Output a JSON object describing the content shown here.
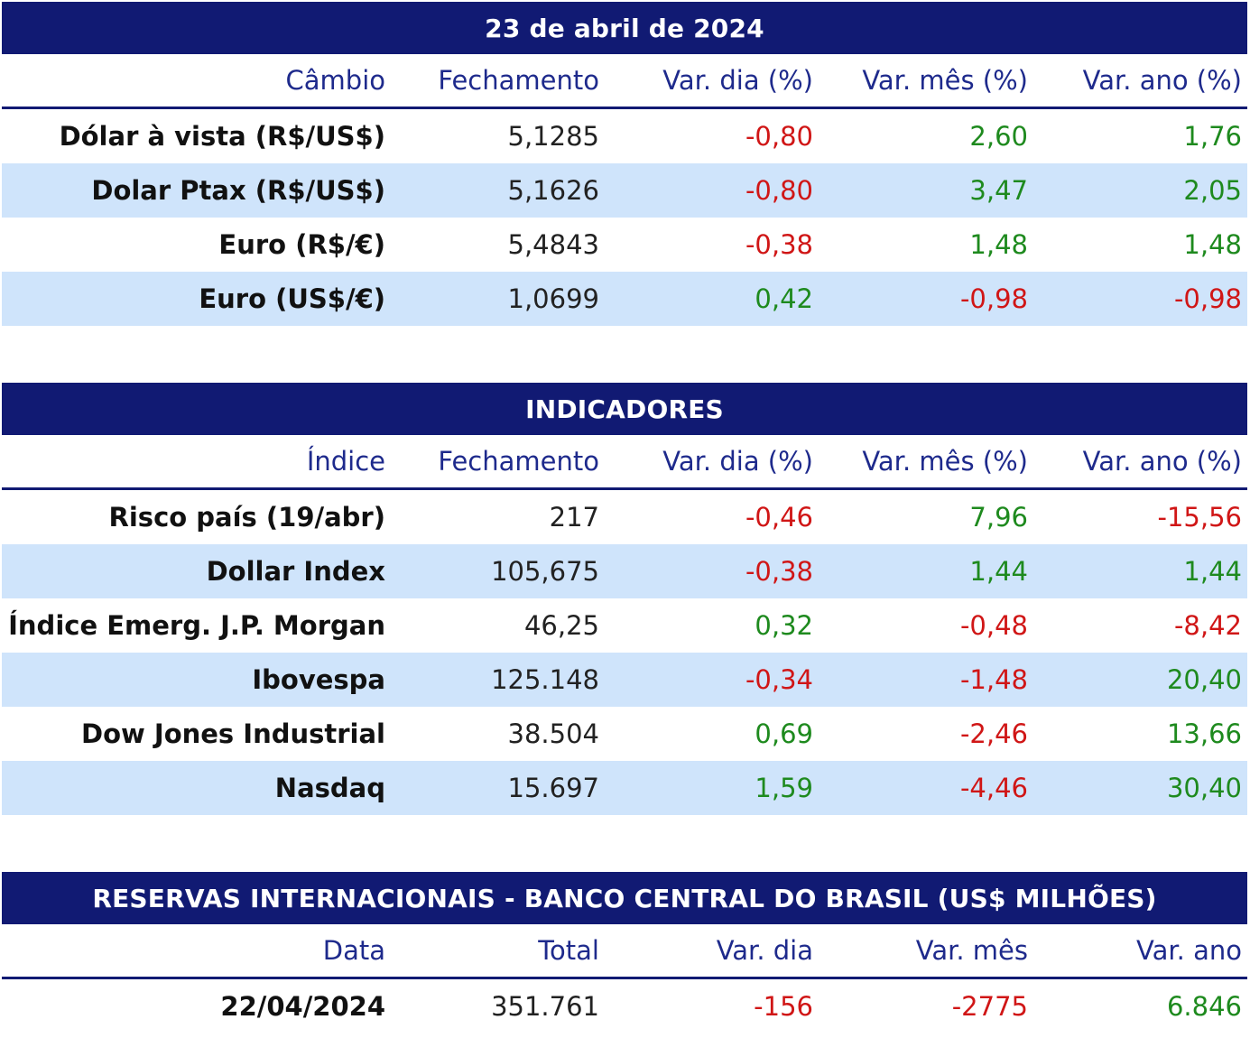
{
  "cambio": {
    "title": "23 de abril de 2024",
    "headers": [
      "Câmbio",
      "Fechamento",
      "Var. dia (%)",
      "Var. mês (%)",
      "Var. ano (%)"
    ],
    "rows": [
      {
        "name": "Dólar à vista (R$/US$)",
        "close": "5,1285",
        "day": "-0,80",
        "month": "2,60",
        "year": "1,76"
      },
      {
        "name": "Dolar Ptax (R$/US$)",
        "close": "5,1626",
        "day": "-0,80",
        "month": "3,47",
        "year": "2,05"
      },
      {
        "name": "Euro (R$/€)",
        "close": "5,4843",
        "day": "-0,38",
        "month": "1,48",
        "year": "1,48"
      },
      {
        "name": "Euro (US$/€)",
        "close": "1,0699",
        "day": "0,42",
        "month": "-0,98",
        "year": "-0,98"
      }
    ]
  },
  "indicadores": {
    "title": "INDICADORES",
    "headers": [
      "Índice",
      "Fechamento",
      "Var. dia (%)",
      "Var. mês (%)",
      "Var. ano (%)"
    ],
    "rows": [
      {
        "name": "Risco país (19/abr)",
        "close": "217",
        "day": "-0,46",
        "month": "7,96",
        "year": "-15,56"
      },
      {
        "name": "Dollar Index",
        "close": "105,675",
        "day": "-0,38",
        "month": "1,44",
        "year": "1,44"
      },
      {
        "name": "Índice Emerg. J.P. Morgan",
        "close": "46,25",
        "day": "0,32",
        "month": "-0,48",
        "year": "-8,42"
      },
      {
        "name": "Ibovespa",
        "close": "125.148",
        "day": "-0,34",
        "month": "-1,48",
        "year": "20,40"
      },
      {
        "name": "Dow Jones Industrial",
        "close": "38.504",
        "day": "0,69",
        "month": "-2,46",
        "year": "13,66"
      },
      {
        "name": "Nasdaq",
        "close": "15.697",
        "day": "1,59",
        "month": "-4,46",
        "year": "30,40"
      }
    ]
  },
  "reservas": {
    "title": "RESERVAS INTERNACIONAIS - BANCO CENTRAL DO BRASIL (US$ MILHÕES)",
    "headers": [
      "Data",
      "Total",
      "Var. dia",
      "Var. mês",
      "Var. ano"
    ],
    "rows": [
      {
        "name": "22/04/2024",
        "close": "351.761",
        "day": "-156",
        "month": "-2775",
        "year": "6.846"
      }
    ]
  },
  "colors": {
    "header_bg": "#111a73",
    "alt_row_bg": "#cfe4fb",
    "positive": "#1e8a1e",
    "negative": "#d01616"
  }
}
